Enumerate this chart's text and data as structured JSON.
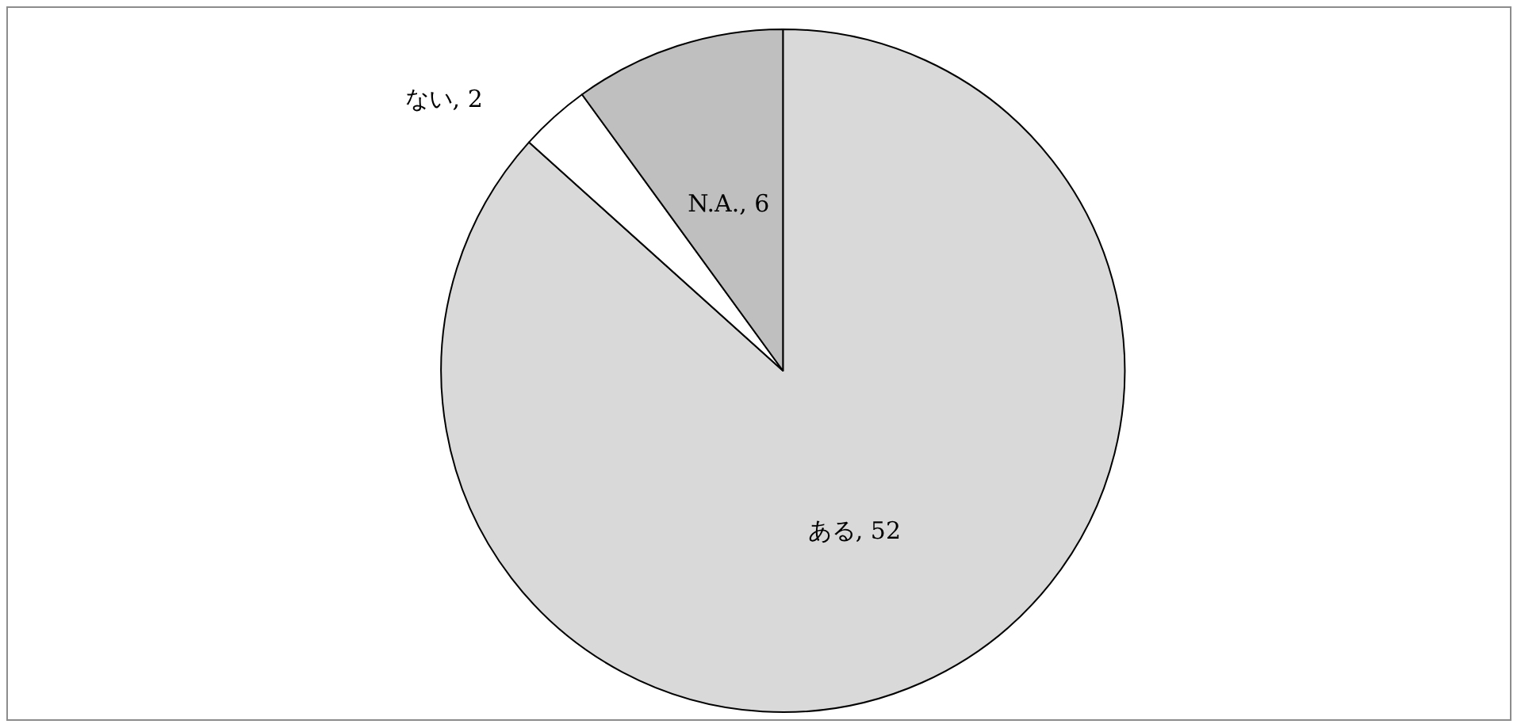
{
  "chart_data": {
    "type": "pie",
    "categories": [
      "ある",
      "ない",
      "N.A."
    ],
    "values": [
      52,
      2,
      6
    ],
    "colors": [
      "#d9d9d9",
      "#ffffff",
      "#bfbfbf"
    ],
    "value_labels": [
      ", 52",
      ", 2",
      ", 6"
    ],
    "legend": false
  }
}
